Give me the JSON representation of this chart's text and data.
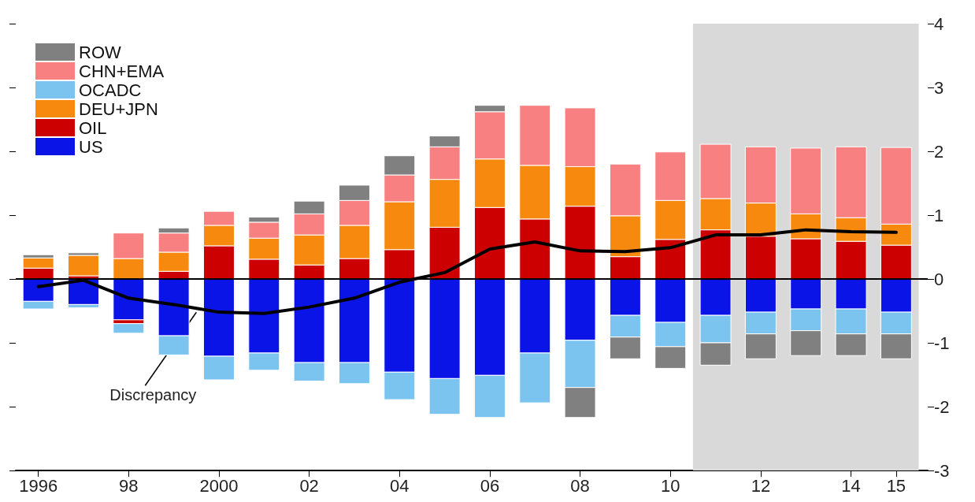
{
  "chart_data": {
    "type": "bar",
    "stacked": true,
    "x": [
      1996,
      1997,
      1998,
      1999,
      2000,
      2001,
      2002,
      2003,
      2004,
      2005,
      2006,
      2007,
      2008,
      2009,
      2010,
      2011,
      2012,
      2013,
      2014,
      2015
    ],
    "xlim": [
      1995.5,
      2015.7
    ],
    "xticks": [
      1996,
      {
        "value": 1998,
        "label": "98"
      },
      2000,
      {
        "value": 2002,
        "label": "02"
      },
      {
        "value": 2004,
        "label": "04"
      },
      {
        "value": 2006,
        "label": "06"
      },
      {
        "value": 2008,
        "label": "08"
      },
      {
        "value": 2010,
        "label": "10"
      },
      {
        "value": 2012,
        "label": "12"
      },
      {
        "value": 2014,
        "label": "14"
      },
      {
        "value": 2015,
        "label": "15"
      }
    ],
    "series": [
      {
        "name": "US",
        "color": "#0a14e6",
        "values": [
          -0.35,
          -0.4,
          -0.64,
          -0.89,
          -1.21,
          -1.16,
          -1.31,
          -1.31,
          -1.46,
          -1.56,
          -1.51,
          -1.16,
          -0.96,
          -0.57,
          -0.68,
          -0.57,
          -0.52,
          -0.47,
          -0.47,
          -0.52
        ]
      },
      {
        "name": "OIL",
        "color": "#cc0000",
        "values": [
          0.17,
          0.05,
          -0.06,
          0.12,
          0.52,
          0.31,
          0.22,
          0.32,
          0.46,
          0.81,
          1.12,
          0.94,
          1.14,
          0.35,
          0.62,
          0.77,
          0.67,
          0.63,
          0.59,
          0.53
        ]
      },
      {
        "name": "DEU+JPN",
        "color": "#f7890f",
        "values": [
          0.16,
          0.32,
          0.32,
          0.3,
          0.32,
          0.33,
          0.47,
          0.52,
          0.75,
          0.75,
          0.76,
          0.84,
          0.62,
          0.64,
          0.61,
          0.49,
          0.52,
          0.39,
          0.37,
          0.33
        ]
      },
      {
        "name": "OCADC",
        "color": "#7cc4f0",
        "values": [
          -0.12,
          -0.05,
          -0.15,
          -0.3,
          -0.37,
          -0.27,
          -0.29,
          -0.33,
          -0.43,
          -0.56,
          -0.66,
          -0.78,
          -0.74,
          -0.34,
          -0.38,
          -0.43,
          -0.34,
          -0.34,
          -0.39,
          -0.34
        ]
      },
      {
        "name": "CHN+EMA",
        "color": "#f98080",
        "values": [
          null,
          null,
          0.4,
          0.3,
          0.22,
          0.25,
          0.33,
          0.39,
          0.42,
          0.51,
          0.74,
          0.94,
          0.92,
          0.81,
          0.76,
          0.85,
          0.88,
          1.03,
          1.11,
          1.2
        ]
      },
      {
        "name": "ROW",
        "color": "#808080",
        "values": [
          0.05,
          0.04,
          null,
          0.08,
          null,
          0.08,
          0.2,
          0.24,
          0.3,
          0.17,
          0.1,
          null,
          -0.47,
          -0.34,
          -0.34,
          -0.35,
          -0.39,
          -0.39,
          -0.34,
          -0.39
        ]
      },
      {
        "name": "Discrepancy",
        "type": "line",
        "color": "#000000",
        "values": [
          -0.12,
          -0.02,
          -0.3,
          -0.4,
          -0.52,
          -0.54,
          -0.44,
          -0.3,
          -0.05,
          0.1,
          0.47,
          0.58,
          0.44,
          0.43,
          0.49,
          0.69,
          0.69,
          0.77,
          0.74,
          0.73
        ]
      }
    ],
    "ylim": [
      -3,
      4
    ],
    "yticks": [
      -3,
      -2,
      -1,
      0,
      1,
      2,
      3,
      4
    ],
    "ref_lines": [
      {
        "axis": "y",
        "value": 0,
        "color": "#000000"
      }
    ],
    "bands": [
      {
        "axis": "x",
        "from": 2010.5,
        "to": 2015.5,
        "color": "#d9d9d9"
      }
    ],
    "legend": "top left",
    "grid": false,
    "marker": "none",
    "line_style": "solid"
  }
}
